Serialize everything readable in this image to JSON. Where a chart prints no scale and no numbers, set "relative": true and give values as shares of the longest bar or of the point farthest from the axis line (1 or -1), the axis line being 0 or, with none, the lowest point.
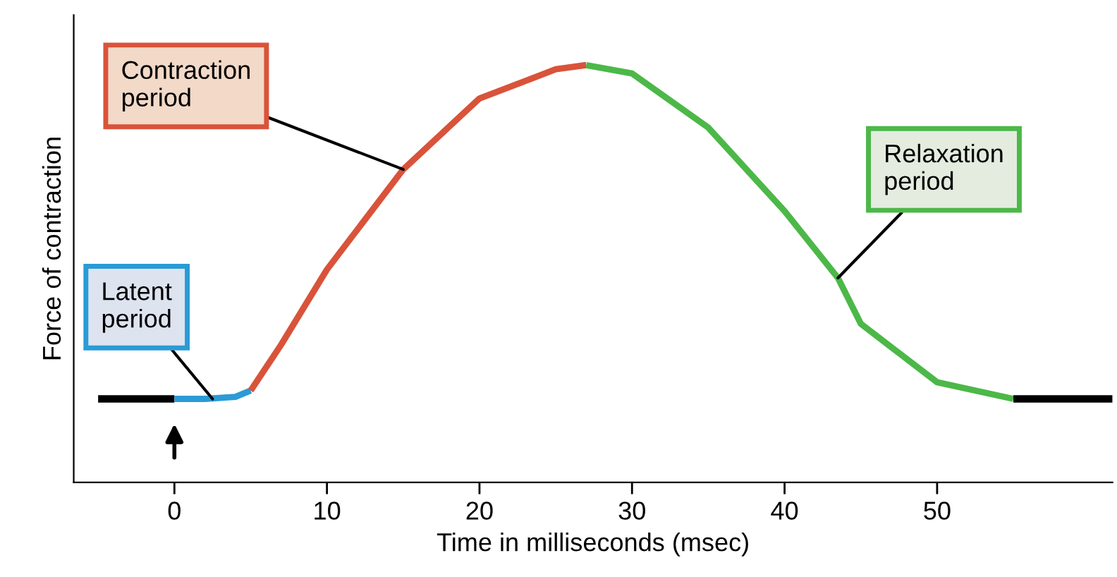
{
  "chart_data": {
    "type": "line",
    "relative": true,
    "xlabel": "Time in milliseconds (msec)",
    "ylabel": "Force of contraction",
    "xlim": [
      -6.6,
      61.5
    ],
    "xticks": [
      0,
      10,
      20,
      30,
      40,
      50
    ],
    "grid": false,
    "legend": false,
    "tick_labels": "x",
    "series": [
      {
        "color": "#000000",
        "x": [
          -5,
          0
        ],
        "values": [
          0.2,
          0.2
        ]
      },
      {
        "color": "#2a9bd6",
        "x": [
          0,
          2,
          4,
          5
        ],
        "values": [
          0.2,
          0.2,
          0.205,
          0.22
        ]
      },
      {
        "color": "#d9533a",
        "x": [
          5,
          7,
          10,
          15,
          20,
          25,
          27
        ],
        "values": [
          0.22,
          0.33,
          0.51,
          0.75,
          0.92,
          0.99,
          1
        ]
      },
      {
        "color": "#4cb848",
        "x": [
          27,
          30,
          35,
          40,
          43.5,
          45,
          50,
          55
        ],
        "values": [
          1,
          0.98,
          0.85,
          0.65,
          0.49,
          0.38,
          0.24,
          0.2
        ]
      },
      {
        "color": "#000000",
        "x": [
          55,
          61.5
        ],
        "values": [
          0.2,
          0.2
        ]
      }
    ],
    "annotations": [
      {
        "text": "Latent\nperiod",
        "x": 2.5,
        "y": 0.2
      },
      {
        "text": "Contraction\nperiod",
        "x": 15,
        "y": 0.75
      },
      {
        "text": "Relaxation\nperiod",
        "x": 43.5,
        "y": 0.49
      }
    ]
  }
}
